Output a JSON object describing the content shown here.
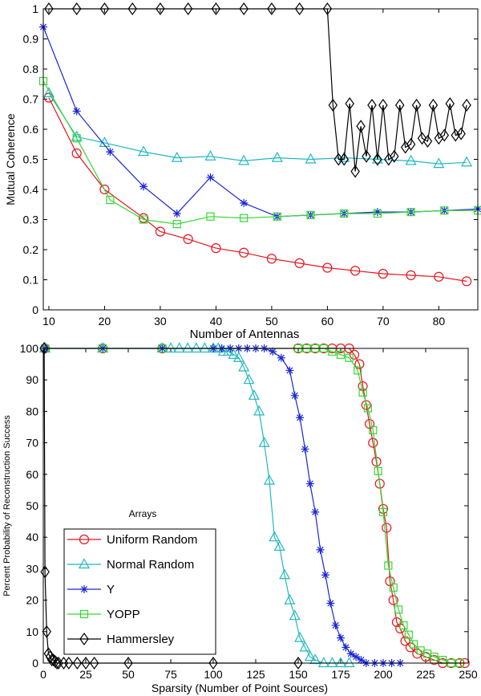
{
  "chart_data": [
    {
      "type": "line",
      "title": "",
      "xlabel": "Number of Antennas",
      "ylabel": "Mutual Coherence",
      "xlim": [
        9,
        87
      ],
      "ylim": [
        0,
        1
      ],
      "xticks": [
        10,
        20,
        30,
        40,
        50,
        60,
        70,
        80
      ],
      "yticks": [
        0,
        0.1,
        0.2,
        0.3,
        0.4,
        0.5,
        0.6,
        0.7,
        0.8,
        0.9,
        1
      ],
      "xtick_labels": [
        "10",
        "20",
        "30",
        "40",
        "50",
        "60",
        "70",
        "80"
      ],
      "ytick_labels": [
        "0",
        "0.1",
        "0.2",
        "0.3",
        "0.4",
        "0.5",
        "0.6",
        "0.7",
        "0.8",
        "0.9",
        "1"
      ],
      "series": [
        {
          "name": "Uniform Random",
          "color": "#e8141c",
          "marker": "circle",
          "x": [
            10,
            15,
            20,
            27,
            30,
            35,
            40,
            45,
            50,
            55,
            60,
            65,
            70,
            75,
            80,
            85
          ],
          "y": [
            0.705,
            0.52,
            0.4,
            0.305,
            0.26,
            0.235,
            0.205,
            0.19,
            0.17,
            0.155,
            0.14,
            0.13,
            0.12,
            0.115,
            0.11,
            0.095
          ]
        },
        {
          "name": "Normal Random",
          "color": "#22b8c0",
          "marker": "triangle",
          "x": [
            10,
            15,
            20,
            27,
            33,
            39,
            45,
            51,
            57,
            63,
            69,
            75,
            80,
            85
          ],
          "y": [
            0.72,
            0.575,
            0.555,
            0.525,
            0.505,
            0.51,
            0.495,
            0.505,
            0.5,
            0.505,
            0.5,
            0.495,
            0.485,
            0.49
          ]
        },
        {
          "name": "Y",
          "color": "#1a26d8",
          "marker": "star",
          "x": [
            9,
            15,
            21,
            27,
            33,
            39,
            45,
            51,
            57,
            63,
            69,
            75,
            81,
            87
          ],
          "y": [
            0.94,
            0.66,
            0.525,
            0.41,
            0.32,
            0.44,
            0.355,
            0.31,
            0.315,
            0.32,
            0.325,
            0.325,
            0.33,
            0.335
          ]
        },
        {
          "name": "YOPP",
          "color": "#36d836",
          "marker": "square",
          "x": [
            9,
            15,
            21,
            27,
            33,
            39,
            45,
            51,
            57,
            63,
            69,
            75,
            81,
            87
          ],
          "y": [
            0.76,
            0.57,
            0.365,
            0.3,
            0.285,
            0.31,
            0.305,
            0.31,
            0.315,
            0.32,
            0.32,
            0.325,
            0.33,
            0.33
          ]
        },
        {
          "name": "Hammersley",
          "color": "#000000",
          "marker": "diamond",
          "x": [
            10,
            15,
            20,
            25,
            30,
            35,
            40,
            45,
            50,
            55,
            60,
            61,
            62,
            63,
            64,
            65,
            66,
            67,
            68,
            69,
            70,
            71,
            72,
            73,
            74,
            75,
            76,
            77,
            78,
            79,
            80,
            81,
            82,
            83,
            84,
            85
          ],
          "y": [
            1,
            1,
            1,
            1,
            1,
            1,
            1,
            1,
            1,
            1,
            1,
            0.68,
            0.5,
            0.5,
            0.685,
            0.46,
            0.61,
            0.51,
            0.68,
            0.5,
            0.68,
            0.5,
            0.51,
            0.68,
            0.54,
            0.55,
            0.68,
            0.57,
            0.56,
            0.68,
            0.57,
            0.58,
            0.685,
            0.58,
            0.585,
            0.68
          ]
        }
      ]
    },
    {
      "type": "line",
      "title": "",
      "xlabel": "Sparsity (Number of Point Sources)",
      "ylabel": "Percent Probability of Reconstruction Success",
      "xlim": [
        0,
        250
      ],
      "ylim": [
        0,
        100
      ],
      "xticks": [
        0,
        25,
        50,
        75,
        100,
        125,
        150,
        175,
        200,
        225,
        250
      ],
      "yticks": [
        0,
        10,
        20,
        30,
        40,
        50,
        60,
        70,
        80,
        90,
        100
      ],
      "xtick_labels": [
        "0",
        "25",
        "50",
        "75",
        "100",
        "125",
        "150",
        "175",
        "200",
        "225",
        "250"
      ],
      "ytick_labels": [
        "0",
        "10",
        "20",
        "30",
        "40",
        "50",
        "60",
        "70",
        "80",
        "90",
        "100"
      ],
      "legend_title": "Arrays",
      "legend_position": "lower-left",
      "series": [
        {
          "name": "Uniform Random",
          "color": "#e8141c",
          "marker": "circle",
          "x": [
            1,
            35,
            70,
            150,
            155,
            160,
            165,
            170,
            175,
            180,
            183,
            186,
            188,
            190,
            192,
            194,
            196,
            198,
            200,
            202,
            204,
            206,
            208,
            210,
            213,
            216,
            220,
            225,
            230,
            235,
            240,
            245,
            248
          ],
          "y": [
            100,
            100,
            100,
            100,
            100,
            100,
            100,
            100,
            100,
            100,
            98,
            95,
            88,
            82,
            76,
            70,
            64,
            57,
            49,
            43,
            26,
            20,
            13,
            11,
            7,
            5,
            3,
            2,
            1,
            0,
            0,
            0,
            0
          ]
        },
        {
          "name": "Normal Random",
          "color": "#22b8c0",
          "marker": "triangle",
          "x": [
            1,
            35,
            70,
            75,
            80,
            85,
            90,
            95,
            100,
            103,
            106,
            109,
            112,
            115,
            118,
            121,
            124,
            127,
            130,
            133,
            136,
            139,
            142,
            145,
            148,
            151,
            154,
            157,
            160,
            165,
            170,
            175,
            180
          ],
          "y": [
            100,
            100,
            100,
            100,
            100,
            100,
            100,
            100,
            100,
            100,
            99,
            99,
            98,
            97,
            94,
            90,
            85,
            80,
            70,
            58,
            40,
            37,
            28,
            20,
            15,
            8,
            5,
            2,
            1,
            0,
            0,
            0,
            0
          ]
        },
        {
          "name": "Y",
          "color": "#1a26d8",
          "marker": "star",
          "x": [
            1,
            35,
            70,
            100,
            105,
            110,
            115,
            120,
            125,
            130,
            135,
            140,
            145,
            148,
            151,
            154,
            157,
            160,
            163,
            166,
            169,
            172,
            175,
            178,
            181,
            184,
            187,
            190,
            195,
            200,
            205,
            210
          ],
          "y": [
            100,
            100,
            100,
            100,
            100,
            100,
            100,
            100,
            100,
            100,
            99,
            97,
            93,
            85,
            78,
            68,
            57,
            48,
            36,
            28,
            19,
            12,
            8,
            5,
            3,
            2,
            1,
            0,
            0,
            0,
            0,
            0
          ]
        },
        {
          "name": "YOPP",
          "color": "#36d836",
          "marker": "square",
          "x": [
            1,
            35,
            70,
            150,
            155,
            160,
            165,
            170,
            175,
            180,
            185,
            188,
            191,
            194,
            197,
            200,
            203,
            206,
            209,
            212,
            215,
            218,
            222,
            226,
            230,
            235,
            240,
            245
          ],
          "y": [
            100,
            100,
            100,
            100,
            100,
            100,
            100,
            99,
            98,
            97,
            93,
            86,
            81,
            74,
            61,
            48,
            31,
            24,
            17,
            12,
            9,
            6,
            4,
            3,
            2,
            1,
            0,
            0
          ]
        },
        {
          "name": "Hammersley",
          "color": "#000000",
          "marker": "diamond",
          "x": [
            0.5,
            1,
            2,
            3,
            4,
            5,
            6,
            7,
            8,
            9,
            12,
            15,
            20,
            25,
            30,
            50,
            100,
            150
          ],
          "y": [
            100,
            29,
            10,
            3,
            2,
            1,
            1,
            0.5,
            0,
            0,
            0,
            0,
            0,
            0,
            0,
            0,
            0,
            0
          ]
        }
      ]
    }
  ]
}
